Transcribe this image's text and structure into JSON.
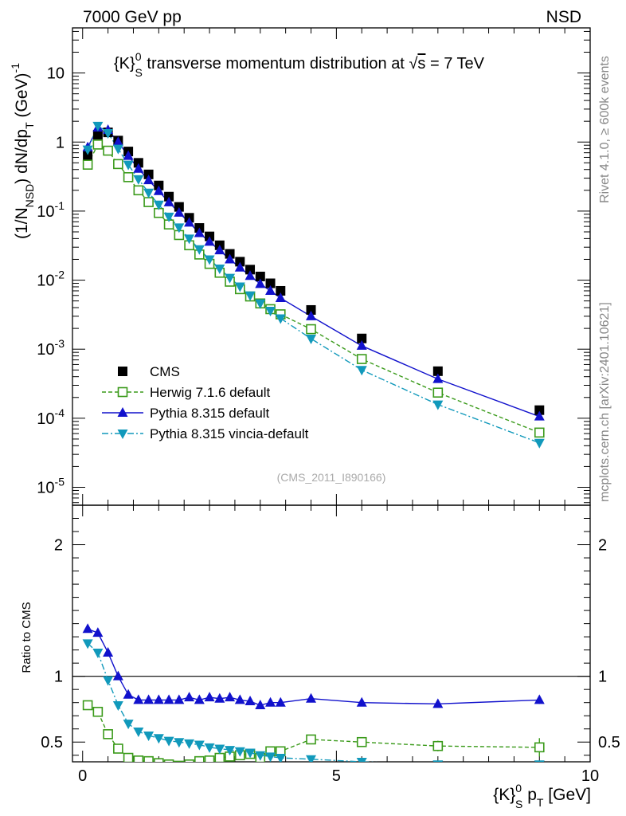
{
  "header": {
    "left": "7000 GeV pp",
    "right": "NSD"
  },
  "side_text": {
    "rivet": "Rivet 4.1.0, ≥ 600k events",
    "mcplots": "mcplots.cern.ch [arXiv:2401.10621]"
  },
  "chart_data": [
    {
      "type": "scatter",
      "title_parts": {
        "k": "{K}",
        "sup": "0",
        "sub": "S",
        "main": " transverse momentum distribution at ",
        "sqrt": "s",
        "energy": " = 7 TeV"
      },
      "ylabel": "(1/N_NSD) dN/dp_T (GeV)^-1",
      "ylabel_parts": {
        "a": "(1/N",
        "sub1": "NSD",
        "b": ") dN/dp",
        "sub2": "T",
        "c": " (GeV)",
        "sup": "-1"
      },
      "yscale": "log",
      "ylim": [
        5.5e-06,
        45
      ],
      "xlim": [
        -0.2,
        10.0
      ],
      "ytick_labels": [
        {
          "exp": "-5",
          "value": 1e-05
        },
        {
          "exp": "-4",
          "value": 0.0001
        },
        {
          "exp": "-3",
          "value": 0.001
        },
        {
          "exp": "-2",
          "value": 0.01
        },
        {
          "exp": "-1",
          "value": 0.1
        },
        {
          "text": "1",
          "value": 1
        },
        {
          "text": "10",
          "value": 10
        }
      ],
      "annotation": "(CMS_2011_I890166)",
      "legend": {
        "position": "lower-left",
        "entries": [
          {
            "label": "CMS",
            "color": "#000000",
            "marker": "square-filled",
            "line": "none"
          },
          {
            "label": "Herwig 7.1.6 default",
            "color": "#3a9a1a",
            "marker": "square-open",
            "line": "dashed"
          },
          {
            "label": "Pythia 8.315 default",
            "color": "#1111cc",
            "marker": "triangle-up",
            "line": "solid"
          },
          {
            "label": "Pythia 8.315 vincia-default",
            "color": "#1199bb",
            "marker": "triangle-down",
            "line": "dashdot"
          }
        ]
      },
      "x": [
        0.1,
        0.3,
        0.5,
        0.7,
        0.9,
        1.1,
        1.3,
        1.5,
        1.7,
        1.9,
        2.1,
        2.3,
        2.5,
        2.7,
        2.9,
        3.1,
        3.3,
        3.5,
        3.7,
        3.9,
        4.5,
        5.5,
        7.0,
        9.0
      ],
      "series": [
        {
          "name": "CMS",
          "values": [
            0.63,
            1.28,
            1.38,
            1.05,
            0.73,
            0.5,
            0.34,
            0.235,
            0.162,
            0.115,
            0.08,
            0.057,
            0.043,
            0.032,
            0.024,
            0.0185,
            0.0142,
            0.0113,
            0.009,
            0.007,
            0.0037,
            0.00143,
            0.00048,
            0.000131
          ]
        },
        {
          "name": "Herwig 7.1.6 default",
          "values": [
            0.47,
            0.92,
            0.75,
            0.48,
            0.31,
            0.2,
            0.135,
            0.094,
            0.064,
            0.045,
            0.032,
            0.0235,
            0.0172,
            0.0128,
            0.0095,
            0.0074,
            0.0058,
            0.0046,
            0.0038,
            0.0032,
            0.00195,
            0.00072,
            0.000235,
            6.2e-05
          ]
        },
        {
          "name": "Pythia 8.315 default",
          "values": [
            0.84,
            1.62,
            1.5,
            1.0,
            0.63,
            0.41,
            0.28,
            0.195,
            0.134,
            0.095,
            0.068,
            0.048,
            0.036,
            0.027,
            0.02,
            0.0152,
            0.0115,
            0.0088,
            0.007,
            0.0055,
            0.003,
            0.00112,
            0.00037,
            0.000106
          ]
        },
        {
          "name": "Pythia 8.315 vincia-default",
          "values": [
            0.78,
            1.72,
            1.35,
            0.8,
            0.47,
            0.29,
            0.185,
            0.124,
            0.083,
            0.058,
            0.04,
            0.028,
            0.02,
            0.0147,
            0.0108,
            0.0081,
            0.006,
            0.0046,
            0.0036,
            0.0028,
            0.00142,
            0.0005,
            0.000158,
            4.4e-05
          ]
        }
      ]
    },
    {
      "type": "scatter",
      "ylabel": "Ratio to CMS",
      "ylim": [
        0.35,
        2.3
      ],
      "xlim": [
        -0.2,
        10.0
      ],
      "xlabel_parts": {
        "k": "{K}",
        "sup": "0",
        "sub": "S",
        "p": " p",
        "sub2": "T",
        "unit": " [GeV]"
      },
      "xtick_labels": [
        {
          "text": "0",
          "value": 0
        },
        {
          "text": "5",
          "value": 5
        },
        {
          "text": "10",
          "value": 10
        }
      ],
      "ytick_labels": [
        {
          "text": "0.5",
          "value": 0.5
        },
        {
          "text": "1",
          "value": 1
        },
        {
          "text": "2",
          "value": 2
        }
      ],
      "reference_line": 1,
      "x": [
        0.1,
        0.3,
        0.5,
        0.7,
        0.9,
        1.1,
        1.3,
        1.5,
        1.7,
        1.9,
        2.1,
        2.3,
        2.5,
        2.7,
        2.9,
        3.1,
        3.3,
        3.5,
        3.7,
        3.9,
        4.5,
        5.5,
        7.0,
        9.0
      ],
      "series": [
        {
          "name": "Herwig 7.1.6 default",
          "values": [
            0.78,
            0.73,
            0.56,
            0.45,
            0.38,
            0.36,
            0.355,
            0.34,
            0.33,
            0.32,
            0.33,
            0.355,
            0.36,
            0.38,
            0.39,
            0.4,
            0.41,
            0.38,
            0.43,
            0.43,
            0.52,
            0.5,
            0.47,
            0.46
          ],
          "errors": [
            0,
            0,
            0,
            0,
            0,
            0,
            0,
            0,
            0,
            0,
            0,
            0,
            0,
            0,
            0,
            0,
            0.02,
            0.02,
            0.03,
            0.03,
            0.02,
            0.03,
            0.04,
            0.07
          ]
        },
        {
          "name": "Pythia 8.315 default",
          "values": [
            1.36,
            1.33,
            1.18,
            1.0,
            0.86,
            0.82,
            0.82,
            0.82,
            0.82,
            0.82,
            0.84,
            0.82,
            0.84,
            0.83,
            0.84,
            0.82,
            0.81,
            0.78,
            0.8,
            0.8,
            0.83,
            0.8,
            0.79,
            0.82
          ],
          "errors": [
            0,
            0,
            0,
            0,
            0,
            0,
            0,
            0,
            0,
            0,
            0,
            0,
            0,
            0,
            0,
            0,
            0,
            0,
            0,
            0,
            0.01,
            0.01,
            0.02,
            0.03
          ]
        },
        {
          "name": "Pythia 8.315 vincia-default",
          "values": [
            1.25,
            1.18,
            0.97,
            0.78,
            0.64,
            0.58,
            0.55,
            0.53,
            0.51,
            0.5,
            0.49,
            0.48,
            0.46,
            0.45,
            0.44,
            0.43,
            0.42,
            0.4,
            0.39,
            0.38,
            0.37,
            0.35,
            0.33,
            0.33
          ],
          "errors": [
            0,
            0,
            0,
            0,
            0,
            0,
            0,
            0,
            0,
            0,
            0,
            0,
            0,
            0,
            0,
            0,
            0,
            0,
            0,
            0,
            0,
            0,
            0,
            0
          ]
        }
      ]
    }
  ]
}
